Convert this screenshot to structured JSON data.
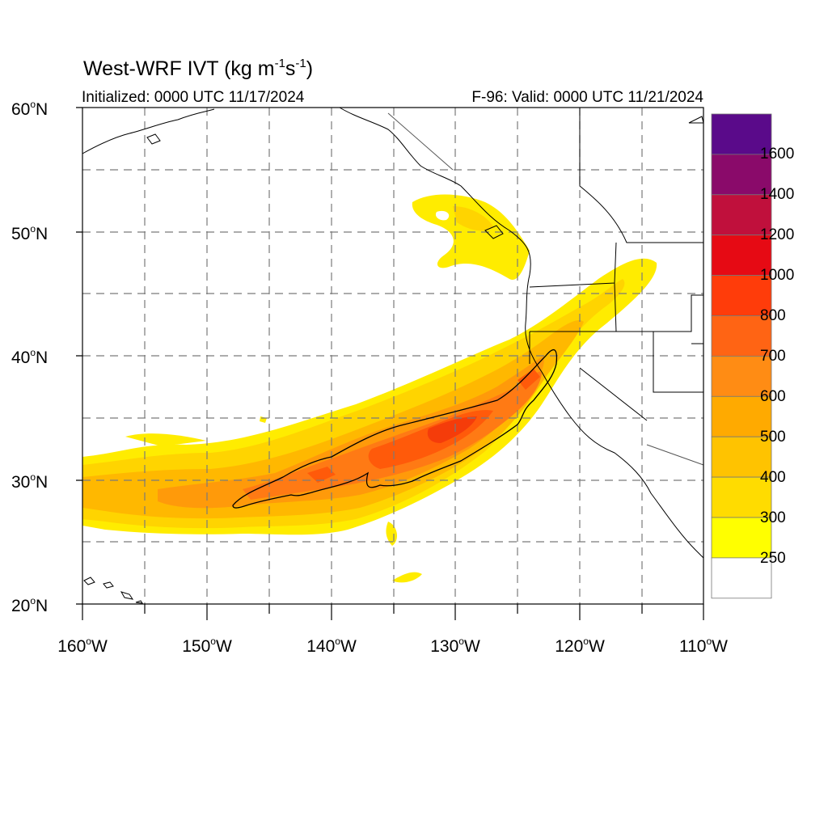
{
  "header": {
    "title_main": "West-WRF IVT (kg m",
    "title_exp1": "-1",
    "title_mid": "s",
    "title_exp2": "-1",
    "title_end": ")",
    "initialized": "Initialized: 0000 UTC 11/17/2024",
    "valid": "F-96: Valid: 0000 UTC 11/21/2024"
  },
  "map": {
    "lat_range": [
      20,
      60
    ],
    "lon_range": [
      -160,
      -110
    ],
    "lat_labels": [
      {
        "value": "60",
        "suffix": "N"
      },
      {
        "value": "50",
        "suffix": "N"
      },
      {
        "value": "40",
        "suffix": "N"
      },
      {
        "value": "30",
        "suffix": "N"
      },
      {
        "value": "20",
        "suffix": "N"
      }
    ],
    "lon_labels": [
      {
        "value": "160",
        "suffix": "W"
      },
      {
        "value": "150",
        "suffix": "W"
      },
      {
        "value": "140",
        "suffix": "W"
      },
      {
        "value": "130",
        "suffix": "W"
      },
      {
        "value": "120",
        "suffix": "W"
      },
      {
        "value": "110",
        "suffix": "W"
      }
    ],
    "gridlines": "dashed every 5 degrees"
  },
  "colorbar": {
    "labels": [
      "1600",
      "1400",
      "1200",
      "1000",
      "800",
      "700",
      "600",
      "500",
      "400",
      "300",
      "250"
    ],
    "colors": [
      "#5a0a8a",
      "#8a0a6a",
      "#c0103c",
      "#e60a14",
      "#ff3c0a",
      "#ff6414",
      "#ff8c14",
      "#ffaa00",
      "#ffc300",
      "#ffdc00",
      "#ffff00",
      "#ffffff"
    ]
  }
}
